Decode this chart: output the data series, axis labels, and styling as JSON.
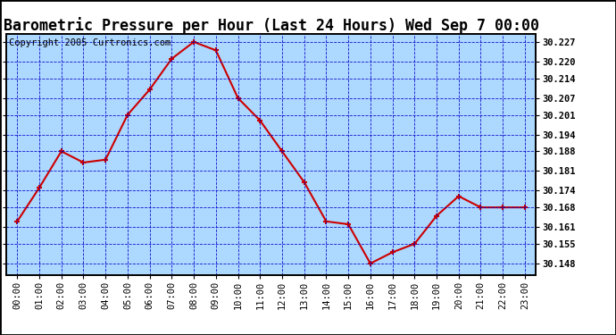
{
  "title": "Barometric Pressure per Hour (Last 24 Hours) Wed Sep 7 00:00",
  "copyright": "Copyright 2005 Curtronics.com",
  "hours": [
    "00:00",
    "01:00",
    "02:00",
    "03:00",
    "04:00",
    "05:00",
    "06:00",
    "07:00",
    "08:00",
    "09:00",
    "10:00",
    "11:00",
    "12:00",
    "13:00",
    "14:00",
    "15:00",
    "16:00",
    "17:00",
    "18:00",
    "19:00",
    "20:00",
    "21:00",
    "22:00",
    "23:00"
  ],
  "values": [
    30.163,
    30.175,
    30.188,
    30.184,
    30.185,
    30.201,
    30.21,
    30.221,
    30.227,
    30.224,
    30.207,
    30.199,
    30.188,
    30.177,
    30.163,
    30.162,
    30.148,
    30.152,
    30.155,
    30.165,
    30.172,
    30.168,
    30.168,
    30.168
  ],
  "ylim_min": 30.144,
  "ylim_max": 30.23,
  "yticks": [
    30.148,
    30.155,
    30.161,
    30.168,
    30.174,
    30.181,
    30.188,
    30.194,
    30.201,
    30.207,
    30.214,
    30.22,
    30.227
  ],
  "line_color": "#cc0000",
  "marker_color": "#cc0000",
  "bg_color": "#add8ff",
  "grid_color": "#0000cc",
  "title_fontsize": 12,
  "copyright_fontsize": 7.5,
  "tick_fontsize": 7.5,
  "axis_label_color": "#000000"
}
